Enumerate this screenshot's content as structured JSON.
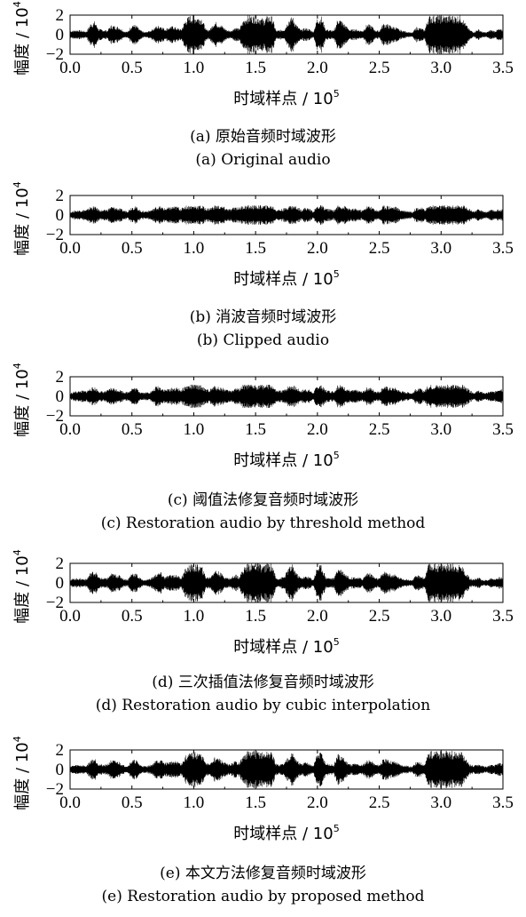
{
  "chart_data": [
    {
      "type": "line",
      "xlabel": "时域样点 / 10",
      "xlabel_exp": "5",
      "ylabel": "幅度 / 10",
      "ylabel_exp": "4",
      "x_ticks": [
        "0.0",
        "0.5",
        "1.0",
        "1.5",
        "2.0",
        "2.5",
        "3.0",
        "3.5"
      ],
      "y_ticks": [
        "2",
        "0",
        "−2"
      ],
      "xlim": [
        0,
        3.5
      ],
      "ylim": [
        -2,
        2
      ],
      "caption_cn": "(a)  原始音频时域波形",
      "caption_en": "(a)  Original audio",
      "envelope": [
        0.4,
        0.45,
        0.5,
        0.4,
        0.35,
        1.2,
        1.4,
        0.6,
        0.5,
        0.45,
        1.0,
        0.9,
        0.8,
        0.4,
        0.3,
        1.1,
        1.0,
        0.5,
        0.25,
        0.35,
        0.6,
        0.9,
        1.0,
        0.6,
        0.8,
        0.9,
        0.7,
        0.55,
        1.6,
        2.0,
        2.0,
        1.9,
        1.8,
        0.5,
        0.6,
        1.4,
        1.2,
        0.9,
        0.5,
        0.4,
        0.8,
        0.6,
        1.5,
        2.0,
        2.0,
        2.0,
        1.9,
        1.6,
        2.0,
        1.9,
        0.4,
        0.5,
        0.6,
        1.6,
        1.9,
        1.0,
        0.5,
        0.7,
        0.6,
        0.3,
        1.8,
        1.9,
        0.6,
        0.5,
        0.4,
        1.8,
        1.4,
        0.9,
        0.5,
        0.6,
        0.5,
        0.4,
        1.1,
        1.0,
        0.5,
        0.4,
        1.2,
        1.1,
        0.9,
        0.8,
        0.5,
        0.4,
        0.3,
        0.2,
        0.8,
        0.7,
        0.5,
        2.0,
        2.0,
        2.0,
        2.0,
        2.0,
        2.0,
        2.0,
        2.0,
        2.0,
        1.1,
        0.5,
        0.3,
        0.6,
        0.3,
        0.25,
        0.5,
        0.4,
        0.6,
        0.5
      ]
    },
    {
      "type": "line",
      "xlabel": "时域样点 / 10",
      "xlabel_exp": "5",
      "ylabel": "幅度 / 10",
      "ylabel_exp": "4",
      "x_ticks": [
        "0.0",
        "0.5",
        "1.0",
        "1.5",
        "2.0",
        "2.5",
        "3.0",
        "3.5"
      ],
      "y_ticks": [
        "2",
        "0",
        "−2"
      ],
      "xlim": [
        0,
        3.5
      ],
      "ylim": [
        -2,
        2
      ],
      "caption_cn": "(b)  消波音频时域波形",
      "caption_en": "(b)  Clipped  audio",
      "envelope": [
        0.3,
        0.45,
        0.5,
        0.55,
        0.55,
        0.9,
        0.9,
        0.6,
        0.5,
        0.6,
        0.9,
        0.8,
        0.7,
        0.5,
        0.45,
        0.9,
        0.9,
        0.5,
        0.4,
        0.45,
        0.6,
        0.9,
        0.9,
        0.7,
        0.8,
        0.9,
        0.9,
        0.7,
        1.0,
        1.0,
        1.0,
        1.0,
        1.0,
        0.7,
        0.75,
        1.0,
        1.0,
        0.9,
        0.7,
        0.6,
        0.9,
        0.8,
        1.0,
        1.0,
        1.0,
        1.0,
        1.0,
        1.0,
        1.0,
        1.0,
        0.6,
        0.6,
        0.7,
        1.0,
        1.0,
        0.9,
        0.6,
        0.8,
        0.7,
        0.4,
        1.0,
        1.0,
        0.7,
        0.6,
        0.55,
        1.0,
        1.0,
        0.9,
        0.6,
        0.7,
        0.6,
        0.5,
        0.95,
        0.9,
        0.6,
        0.5,
        1.0,
        1.0,
        0.9,
        0.9,
        0.6,
        0.5,
        0.45,
        0.35,
        0.8,
        0.8,
        0.6,
        1.0,
        1.0,
        1.0,
        1.0,
        1.0,
        1.0,
        1.0,
        1.0,
        1.0,
        1.0,
        0.6,
        0.4,
        0.6,
        0.45,
        0.35,
        0.55,
        0.5,
        0.6,
        0.6
      ]
    },
    {
      "type": "line",
      "xlabel": "时域样点 / 10",
      "xlabel_exp": "5",
      "ylabel": "幅度 / 10",
      "ylabel_exp": "4",
      "x_ticks": [
        "0.0",
        "0.5",
        "1.0",
        "1.5",
        "2.0",
        "2.5",
        "3.0",
        "3.5"
      ],
      "y_ticks": [
        "2",
        "0",
        "−2"
      ],
      "xlim": [
        0,
        3.5
      ],
      "ylim": [
        -2,
        2
      ],
      "caption_cn": "(c)  阈值法修复音频时域波形",
      "caption_en": "(c)  Restoration audio by threshold method",
      "envelope": [
        0.3,
        0.5,
        0.55,
        0.6,
        0.55,
        0.9,
        0.95,
        0.6,
        0.5,
        0.6,
        0.95,
        0.8,
        0.7,
        0.5,
        0.45,
        0.9,
        0.9,
        0.5,
        0.4,
        0.45,
        0.6,
        1.1,
        1.0,
        0.7,
        0.8,
        0.9,
        0.9,
        0.7,
        1.1,
        1.2,
        1.2,
        1.2,
        1.1,
        0.7,
        0.75,
        1.1,
        1.0,
        0.9,
        0.7,
        0.6,
        0.9,
        0.8,
        1.2,
        1.2,
        1.2,
        1.2,
        1.2,
        1.2,
        1.2,
        1.2,
        0.6,
        0.6,
        0.7,
        1.1,
        1.2,
        0.9,
        0.6,
        0.8,
        0.7,
        0.4,
        1.2,
        1.1,
        0.7,
        0.6,
        0.55,
        1.2,
        1.1,
        0.9,
        0.6,
        0.7,
        0.6,
        0.5,
        0.95,
        0.9,
        0.6,
        0.5,
        1.1,
        1.0,
        0.9,
        0.9,
        0.6,
        0.5,
        0.45,
        0.35,
        0.8,
        0.8,
        0.6,
        1.2,
        1.2,
        1.2,
        1.2,
        1.2,
        1.2,
        1.2,
        1.2,
        1.2,
        1.0,
        0.6,
        0.4,
        0.6,
        0.45,
        0.35,
        0.55,
        0.5,
        0.9,
        0.8
      ]
    },
    {
      "type": "line",
      "xlabel": "时域样点 / 10",
      "xlabel_exp": "5",
      "ylabel": "幅度 / 10",
      "ylabel_exp": "4",
      "x_ticks": [
        "0.0",
        "0.5",
        "1.0",
        "1.5",
        "2.0",
        "2.5",
        "3.0",
        "3.5"
      ],
      "y_ticks": [
        "2",
        "0",
        "−2"
      ],
      "xlim": [
        0,
        3.5
      ],
      "ylim": [
        -2,
        2
      ],
      "caption_cn": "(d)  三次插值法修复音频时域波形",
      "caption_en": "(d)  Restoration audio by cubic interpolation",
      "envelope": [
        0.4,
        0.45,
        0.5,
        0.45,
        0.4,
        1.1,
        1.3,
        0.6,
        0.5,
        0.5,
        1.0,
        0.9,
        0.8,
        0.45,
        0.35,
        1.1,
        1.0,
        0.5,
        0.3,
        0.4,
        0.6,
        1.0,
        1.1,
        0.6,
        0.8,
        0.9,
        0.8,
        0.6,
        1.5,
        1.9,
        1.9,
        1.9,
        1.7,
        0.6,
        0.65,
        1.4,
        1.2,
        0.9,
        0.55,
        0.5,
        0.9,
        0.7,
        1.5,
        2.0,
        2.1,
        2.1,
        2.0,
        1.8,
        2.1,
        2.0,
        0.5,
        0.55,
        0.7,
        1.6,
        1.9,
        1.0,
        0.55,
        0.7,
        0.65,
        0.35,
        1.8,
        1.9,
        0.65,
        0.55,
        0.5,
        1.7,
        1.4,
        0.9,
        0.55,
        0.65,
        0.55,
        0.45,
        1.1,
        1.0,
        0.55,
        0.45,
        1.2,
        1.1,
        0.9,
        0.85,
        0.55,
        0.45,
        0.35,
        0.3,
        0.8,
        0.75,
        0.55,
        2.0,
        2.0,
        2.0,
        2.0,
        2.0,
        2.0,
        2.0,
        1.9,
        1.9,
        1.1,
        0.55,
        0.35,
        0.6,
        0.35,
        0.3,
        0.5,
        0.45,
        0.6,
        0.55
      ]
    },
    {
      "type": "line",
      "xlabel": "时域样点 / 10",
      "xlabel_exp": "5",
      "ylabel": "幅度 / 10",
      "ylabel_exp": "4",
      "x_ticks": [
        "0.0",
        "0.5",
        "1.0",
        "1.5",
        "2.0",
        "2.5",
        "3.0",
        "3.5"
      ],
      "y_ticks": [
        "2",
        "0",
        "−2"
      ],
      "xlim": [
        0,
        3.5
      ],
      "ylim": [
        -2,
        2
      ],
      "caption_cn": "(e)  本文方法修复音频时域波形",
      "caption_en": "(e)  Restoration audio by proposed method",
      "envelope": [
        0.35,
        0.45,
        0.5,
        0.45,
        0.4,
        1.0,
        1.2,
        0.6,
        0.5,
        0.55,
        1.0,
        0.9,
        0.8,
        0.45,
        0.4,
        1.0,
        1.0,
        0.5,
        0.35,
        0.4,
        0.6,
        1.0,
        1.0,
        0.7,
        0.8,
        0.9,
        0.85,
        0.65,
        1.4,
        1.7,
        1.8,
        1.8,
        1.6,
        0.6,
        0.7,
        1.3,
        1.2,
        0.9,
        0.6,
        0.55,
        0.9,
        0.75,
        1.4,
        1.9,
        1.9,
        1.9,
        1.9,
        1.7,
        1.9,
        1.8,
        0.55,
        0.55,
        0.7,
        1.5,
        1.8,
        1.0,
        0.55,
        0.75,
        0.65,
        0.4,
        1.7,
        1.8,
        0.65,
        0.55,
        0.5,
        1.6,
        1.4,
        0.9,
        0.55,
        0.65,
        0.55,
        0.5,
        1.0,
        0.95,
        0.55,
        0.5,
        1.1,
        1.05,
        0.9,
        0.85,
        0.55,
        0.45,
        0.4,
        0.3,
        0.8,
        0.75,
        0.55,
        1.9,
        1.9,
        1.9,
        1.9,
        1.9,
        1.9,
        1.9,
        1.9,
        1.8,
        1.05,
        0.55,
        0.4,
        0.6,
        0.4,
        0.3,
        0.5,
        0.45,
        0.7,
        0.6
      ]
    }
  ]
}
